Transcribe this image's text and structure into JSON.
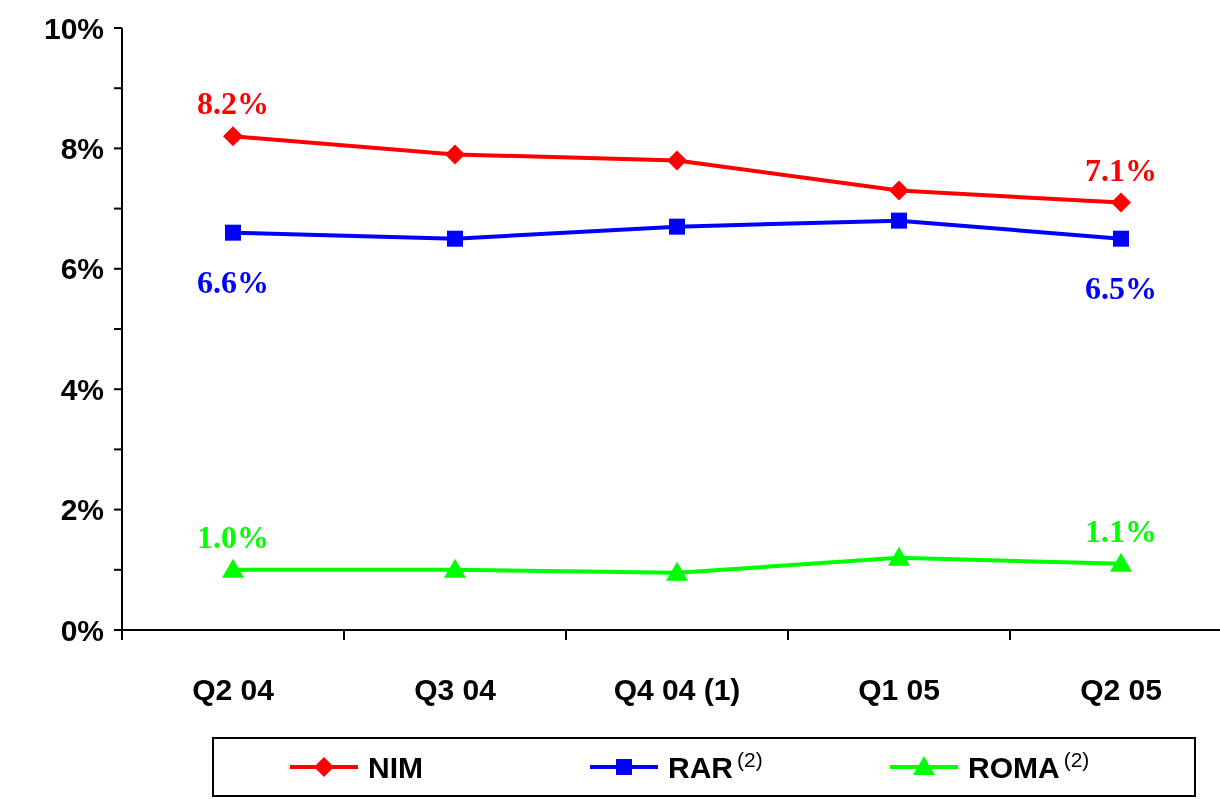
{
  "chart_data": {
    "type": "line",
    "categories": [
      "Q2 04",
      "Q3 04",
      "Q4 04 (1)",
      "Q1 05",
      "Q2 05"
    ],
    "ylim": [
      0,
      10
    ],
    "yticks": [
      {
        "value": 0,
        "label": "0%"
      },
      {
        "value": 1,
        "label": null
      },
      {
        "value": 2,
        "label": "2%"
      },
      {
        "value": 3,
        "label": null
      },
      {
        "value": 4,
        "label": "4%"
      },
      {
        "value": 5,
        "label": null
      },
      {
        "value": 6,
        "label": "6%"
      },
      {
        "value": 7,
        "label": null
      },
      {
        "value": 8,
        "label": "8%"
      },
      {
        "value": 9,
        "label": null
      },
      {
        "value": 10,
        "label": "10%"
      }
    ],
    "series": [
      {
        "name": "NIM",
        "color": "#ff0000",
        "marker": "diamond",
        "values": [
          8.2,
          7.9,
          7.8,
          7.3,
          7.1
        ],
        "value_labels": [
          "8.2%",
          null,
          null,
          null,
          "7.1%"
        ]
      },
      {
        "name": "RAR$^{(2)}$",
        "color": "#0000ff",
        "marker": "square",
        "values": [
          6.6,
          6.5,
          6.7,
          6.8,
          6.5
        ],
        "value_labels": [
          "6.6%",
          null,
          null,
          null,
          "6.5%"
        ]
      },
      {
        "name": "ROMA$^{(2)}$",
        "color": "#00ff00",
        "marker": "triangle",
        "values": [
          1.0,
          1.0,
          0.95,
          1.2,
          1.1
        ],
        "value_labels": [
          "1.0%",
          null,
          null,
          null,
          "1.1%"
        ]
      }
    ],
    "legend": "bottom",
    "grid": false
  }
}
